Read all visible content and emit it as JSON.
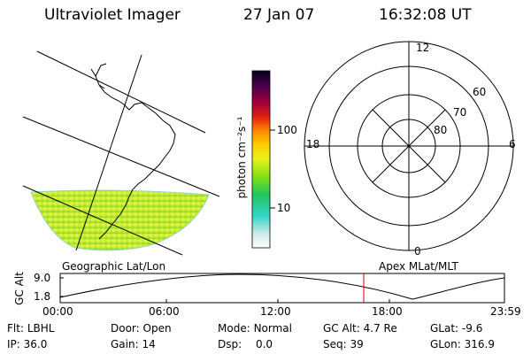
{
  "header": {
    "instrument": "Ultraviolet Imager",
    "date": "27 Jan 07",
    "time": "16:32:08 UT"
  },
  "colorbar": {
    "unit_label": "photon cm⁻²s⁻¹",
    "ticks": [
      "100",
      "10"
    ]
  },
  "polar_plot": {
    "mlt_labels": {
      "top": "12",
      "bottom": "0",
      "left": "18",
      "right": "6"
    },
    "lat_labels": [
      "60",
      "70",
      "80"
    ]
  },
  "orbit_plot": {
    "left_title": "Geographic Lat/Lon",
    "right_title": "Apex  MLat/MLT",
    "y_label": "GC Alt",
    "y_ticks": [
      "9.0",
      "1.8"
    ],
    "x_ticks": [
      "00:00",
      "06:00",
      "12:00",
      "18:00",
      "23:59"
    ],
    "current_time_marker_color": "#cc0000"
  },
  "info": {
    "row1": [
      {
        "label": "Flt:",
        "value": "LBHL"
      },
      {
        "label": "Door:",
        "value": "Open"
      },
      {
        "label": "Mode:",
        "value": "Normal"
      },
      {
        "label": "GC Alt:",
        "value": "4.7 Re"
      },
      {
        "label": "GLat:",
        "value": "-9.6"
      }
    ],
    "row2": [
      {
        "label": "IP:",
        "value": "36.0"
      },
      {
        "label": "Gain:",
        "value": "14"
      },
      {
        "label": "Dsp:",
        "value": "0.0"
      },
      {
        "label": "Seq:",
        "value": "39"
      },
      {
        "label": "GLon:",
        "value": "316.9"
      }
    ]
  }
}
